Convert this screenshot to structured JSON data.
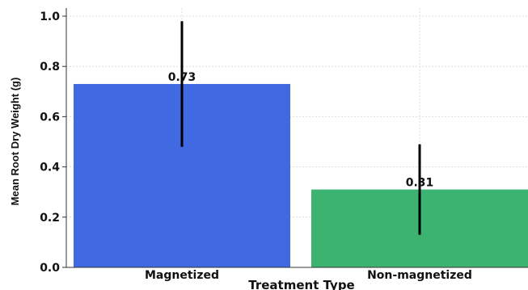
{
  "chart_data": {
    "type": "bar",
    "title": "",
    "xlabel": "Treatment Type",
    "ylabel": "Mean Root Dry Weight (g)",
    "categories": [
      "Magnetized",
      "Non-magnetized"
    ],
    "values": [
      0.73,
      0.31
    ],
    "value_labels": [
      "0.73",
      "0.31"
    ],
    "error_bars": [
      {
        "low": 0.48,
        "high": 0.98
      },
      {
        "low": 0.13,
        "high": 0.49
      }
    ],
    "colors": [
      "#4169e1",
      "#3cb371"
    ],
    "ylim": [
      0,
      1.0
    ],
    "yticks": [
      "0.0",
      "0.2",
      "0.4",
      "0.6",
      "0.8",
      "1.0"
    ],
    "grid": true
  }
}
